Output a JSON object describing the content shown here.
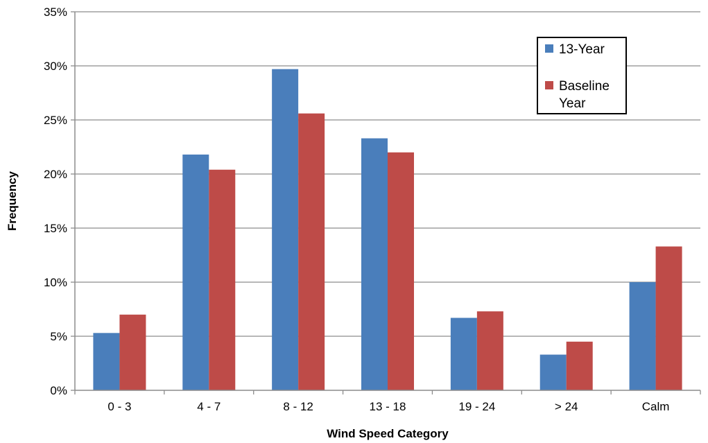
{
  "chart_data": {
    "type": "bar",
    "title": "",
    "xlabel": "Wind Speed Category",
    "ylabel": "Frequency",
    "categories": [
      "0 - 3",
      "4 - 7",
      "8 - 12",
      "13 - 18",
      "19 - 24",
      "> 24",
      "Calm"
    ],
    "series": [
      {
        "name": "13-Year",
        "color": "#4a7ebb",
        "values": [
          5.3,
          21.8,
          29.7,
          23.3,
          6.7,
          3.3,
          10.0
        ]
      },
      {
        "name": "Baseline Year",
        "color": "#be4b48",
        "values": [
          7.0,
          20.4,
          25.6,
          22.0,
          7.3,
          4.5,
          13.3
        ]
      }
    ],
    "ylim": [
      0,
      35
    ],
    "y_ticks": [
      0,
      5,
      10,
      15,
      20,
      25,
      30,
      35
    ],
    "y_tick_labels": [
      "0%",
      "5%",
      "10%",
      "15%",
      "20%",
      "25%",
      "30%",
      "35%"
    ],
    "grid": true,
    "legend_position": "top-right",
    "legend_labels": [
      "13-Year",
      "Baseline Year"
    ]
  }
}
